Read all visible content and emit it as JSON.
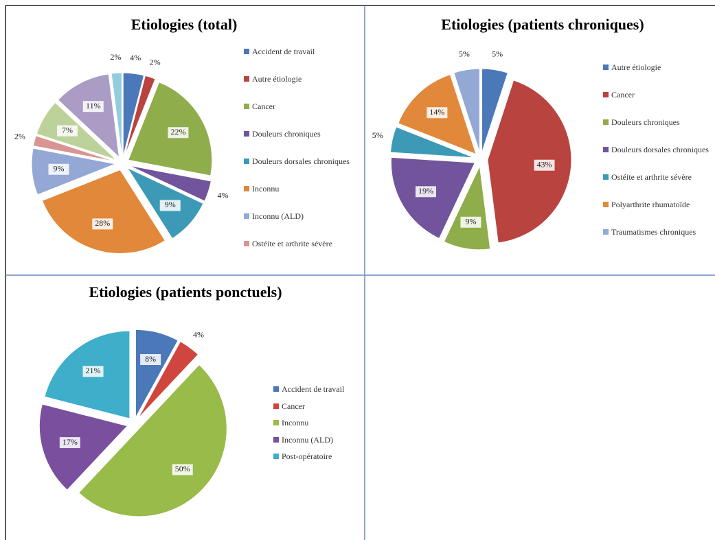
{
  "chart_data": [
    {
      "type": "pie",
      "title": "Etiologies (total)",
      "categories": [
        "Accident de travail",
        "Autre étiologie",
        "Cancer",
        "Douleurs chroniques",
        "Douleurs dorsales chroniques",
        "Inconnu",
        "Inconnu (ALD)",
        "Ostéite et arthrite sévère",
        null,
        null,
        null
      ],
      "values": [
        4,
        2,
        22,
        4,
        9,
        28,
        9,
        2,
        7,
        11,
        2
      ],
      "value_labels": [
        "4%",
        "2%",
        "22%",
        "4%",
        "9%",
        "28%",
        "9%",
        "2%",
        "7%",
        "11%",
        "2%"
      ],
      "colors": [
        "#4a78b8",
        "#b9433f",
        "#8fad4a",
        "#71549b",
        "#3d9ab6",
        "#e1883a",
        "#93a8d4",
        "#d99592",
        "#bcd29a",
        "#ab9cc6",
        "#93cddd"
      ]
    },
    {
      "type": "pie",
      "title": "Etiologies (patients chroniques)",
      "categories": [
        "Autre étiologie",
        "Cancer",
        "Douleurs chroniques",
        "Douleurs dorsales chroniques",
        "Ostéite et arthrite sévère",
        "Polyarthrite rhumatoïde",
        "Traumatismes chroniques"
      ],
      "values": [
        5,
        43,
        9,
        19,
        5,
        14,
        5
      ],
      "value_labels": [
        "5%",
        "43%",
        "9%",
        "19%",
        "5%",
        "14%",
        "5%"
      ],
      "colors": [
        "#4a78b8",
        "#b9433f",
        "#8fad4a",
        "#71549b",
        "#3d9ab6",
        "#e1883a",
        "#93a8d4"
      ]
    },
    {
      "type": "pie",
      "title": "Etiologies (patients ponctuels)",
      "categories": [
        "Accident de travail",
        "Cancer",
        "Inconnu",
        "Inconnu (ALD)",
        "Post-opératoire"
      ],
      "values": [
        8,
        4,
        50,
        17,
        21
      ],
      "value_labels": [
        "8%",
        "4%",
        "50%",
        "17%",
        "21%"
      ],
      "colors": [
        "#4a78b8",
        "#d0463f",
        "#98bb4a",
        "#7a4f9e",
        "#3eaecb"
      ]
    }
  ]
}
